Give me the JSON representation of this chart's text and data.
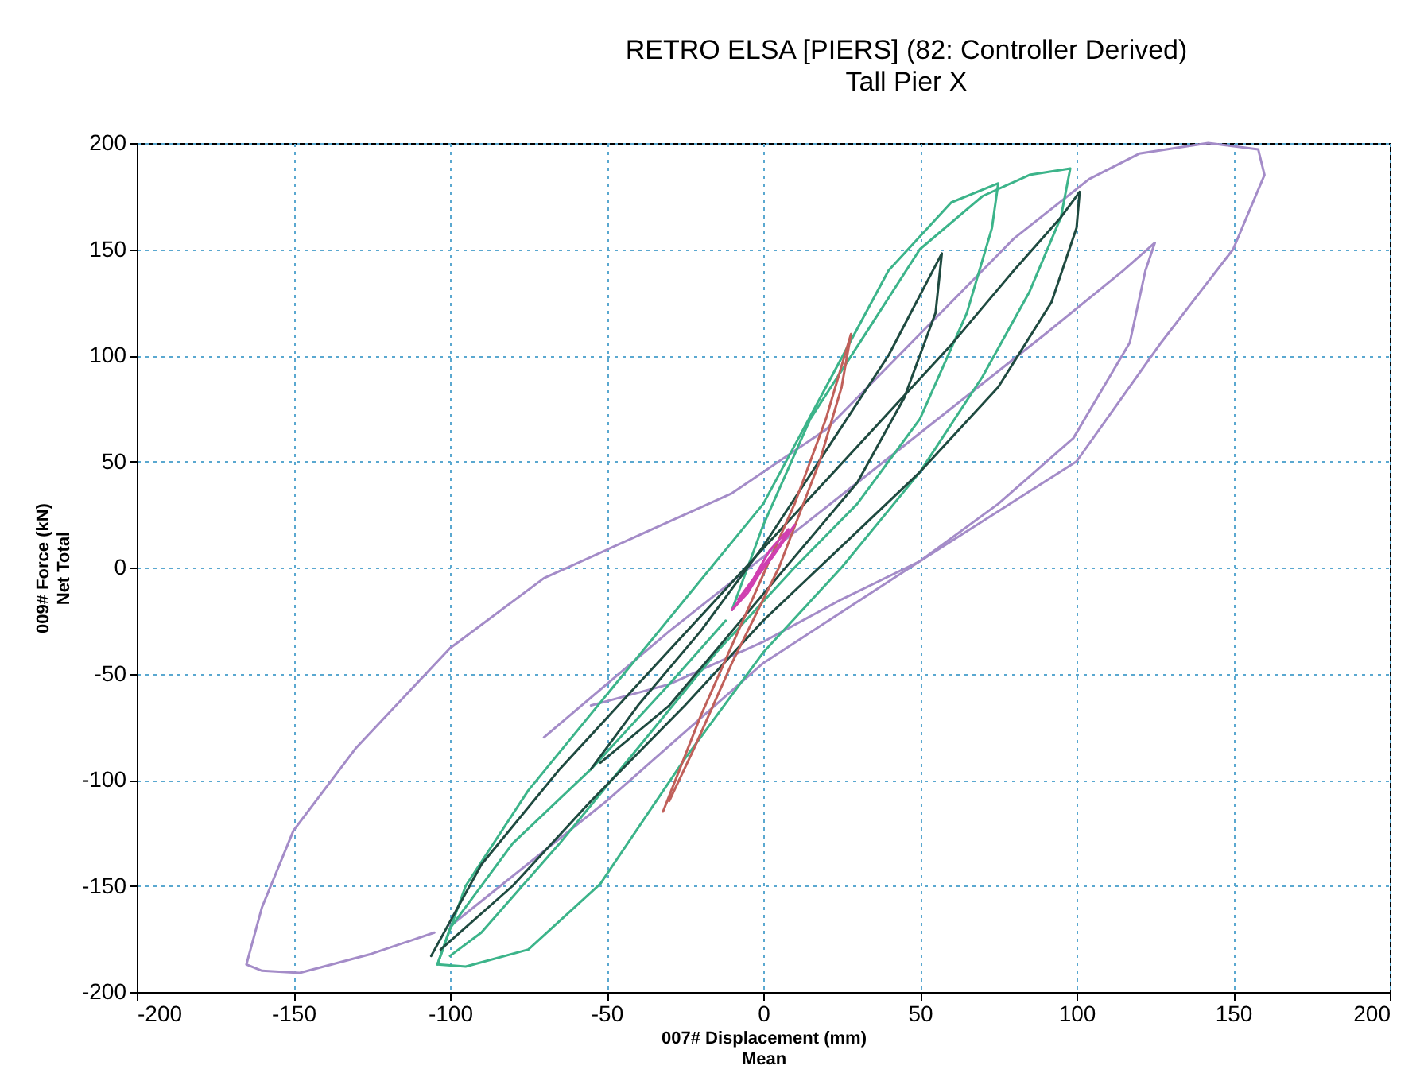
{
  "chart_data": {
    "type": "line",
    "title": "RETRO ELSA [PIERS] (82: Controller Derived)",
    "subtitle": "Tall Pier X",
    "xlabel": "007# Displacement (mm)\nMean",
    "ylabel": "009# Force (kN)\nNet Total",
    "xlim": [
      -200,
      200
    ],
    "ylim": [
      -200,
      200
    ],
    "xticks": [
      -200,
      -150,
      -100,
      -50,
      0,
      50,
      100,
      150,
      200
    ],
    "yticks": [
      -200,
      -150,
      -100,
      -50,
      0,
      50,
      100,
      150,
      200
    ],
    "grid": true,
    "line_style": "solid",
    "series": [
      {
        "color": "#a48cc8",
        "x": [
          -100,
          -50,
          0,
          50,
          100,
          127,
          150,
          160,
          158,
          142,
          120,
          104,
          80,
          50,
          20,
          -10,
          -40,
          -70,
          -100,
          -130,
          -150,
          -160,
          -165,
          -160,
          -148,
          -125,
          -105
        ],
        "values": [
          -169,
          -110,
          -45,
          3,
          50,
          106,
          150,
          185,
          197,
          200,
          195,
          183,
          155,
          110,
          65,
          35,
          15,
          -5,
          -38,
          -85,
          -124,
          -160,
          -187,
          -190,
          -191,
          -182,
          -172
        ]
      },
      {
        "color": "#a48cc8",
        "x": [
          -70,
          -30,
          0,
          30,
          60,
          90,
          115,
          125,
          122,
          117,
          99,
          75,
          50,
          25,
          0,
          -30,
          -55
        ],
        "values": [
          -80,
          -30,
          5,
          40,
          75,
          110,
          140,
          153,
          140,
          106,
          61,
          30,
          3,
          -15,
          -35,
          -55,
          -65
        ]
      },
      {
        "color": "#3cb48a",
        "x": [
          -104,
          -95,
          -75,
          -50,
          -25,
          0,
          20,
          40,
          60,
          75,
          73,
          65,
          50,
          30,
          10,
          -15,
          -40,
          -65,
          -90,
          -100
        ],
        "values": [
          -187,
          -150,
          -105,
          -60,
          -15,
          30,
          85,
          140,
          172,
          181,
          160,
          120,
          70,
          30,
          0,
          -40,
          -85,
          -130,
          -172,
          -183
        ]
      },
      {
        "color": "#3cb48a",
        "x": [
          -10,
          0,
          15,
          33,
          50,
          70,
          85,
          98,
          95,
          85,
          70,
          50,
          25,
          0,
          -25,
          -52,
          -75,
          -95,
          -104,
          -100,
          -80,
          -55,
          -30,
          -12
        ],
        "values": [
          -20,
          20,
          70,
          111,
          150,
          175,
          185,
          188,
          165,
          130,
          90,
          45,
          0,
          -40,
          -90,
          -149,
          -180,
          -188,
          -187,
          -170,
          -130,
          -95,
          -55,
          -25
        ]
      },
      {
        "color": "#1f4a40",
        "x": [
          -106,
          -90,
          -65,
          -40,
          -15,
          10,
          35,
          60,
          80,
          95,
          101,
          100,
          92,
          75,
          50,
          25,
          0,
          -25,
          -55,
          -80,
          -103
        ],
        "values": [
          -183,
          -140,
          -95,
          -55,
          -15,
          25,
          65,
          105,
          140,
          165,
          177,
          160,
          125,
          85,
          45,
          10,
          -25,
          -65,
          -110,
          -150,
          -180
        ]
      },
      {
        "color": "#1f4a40",
        "x": [
          -55,
          -40,
          -20,
          0,
          20,
          40,
          57,
          55,
          45,
          30,
          10,
          -10,
          -30,
          -52
        ],
        "values": [
          -95,
          -65,
          -30,
          10,
          55,
          100,
          148,
          120,
          80,
          40,
          5,
          -30,
          -65,
          -92
        ]
      },
      {
        "color": "#c0605a",
        "x": [
          -32,
          -20,
          -5,
          10,
          20,
          28,
          25,
          18,
          5,
          -10,
          -22,
          -30
        ],
        "values": [
          -115,
          -70,
          -20,
          30,
          70,
          110,
          85,
          50,
          0,
          -45,
          -85,
          -110
        ]
      },
      {
        "color": "#d040b0",
        "x": [
          -8,
          -3,
          2,
          8,
          5,
          0,
          -5,
          -10,
          -4,
          3,
          10,
          6,
          -2,
          -6
        ],
        "values": [
          -15,
          -5,
          8,
          18,
          10,
          0,
          -12,
          -20,
          -8,
          5,
          20,
          12,
          -3,
          -12
        ]
      }
    ]
  }
}
